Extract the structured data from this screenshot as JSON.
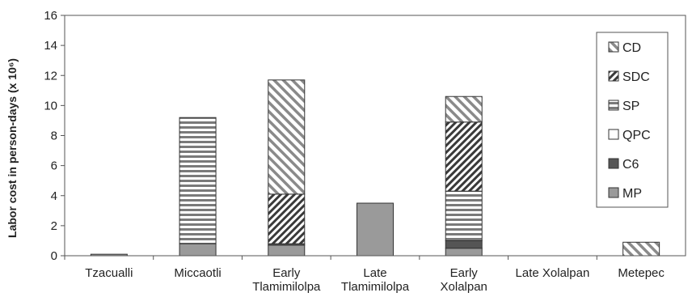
{
  "chart_data": {
    "type": "bar",
    "stacked": true,
    "ylabel": "Labor cost in person-days (x 10⁶)",
    "ylim": [
      0,
      16
    ],
    "yticks": [
      0,
      2,
      4,
      6,
      8,
      10,
      12,
      14,
      16
    ],
    "grid": false,
    "legend_position": "right",
    "categories": [
      [
        "Tzacualli"
      ],
      [
        "Miccaotli"
      ],
      [
        "Early",
        "Tlamimilolpa"
      ],
      [
        "Late",
        "Tlamimilolpa"
      ],
      [
        "Early",
        "Xolalpan"
      ],
      [
        "Late Xolalpan"
      ],
      [
        "Metepec"
      ]
    ],
    "series": [
      {
        "name": "MP",
        "pattern": "solid-gray",
        "values": [
          0.1,
          0.8,
          0.7,
          3.5,
          0.5,
          0,
          0
        ]
      },
      {
        "name": "C6",
        "pattern": "solid-dark",
        "values": [
          0,
          0,
          0.1,
          0,
          0.5,
          0,
          0
        ]
      },
      {
        "name": "QPC",
        "pattern": "white",
        "values": [
          0,
          0,
          0,
          0,
          0,
          0,
          0
        ]
      },
      {
        "name": "SP",
        "pattern": "horizontal-lines",
        "values": [
          0,
          8.4,
          0,
          0,
          3.3,
          0,
          0
        ]
      },
      {
        "name": "SDC",
        "pattern": "diagonal-down",
        "values": [
          0,
          0,
          3.3,
          0,
          4.6,
          0,
          0
        ]
      },
      {
        "name": "CD",
        "pattern": "diagonal-up",
        "values": [
          0,
          0,
          7.6,
          0,
          1.7,
          0,
          0.9
        ]
      }
    ],
    "legend_order": [
      "CD",
      "SDC",
      "SP",
      "QPC",
      "C6",
      "MP"
    ]
  }
}
